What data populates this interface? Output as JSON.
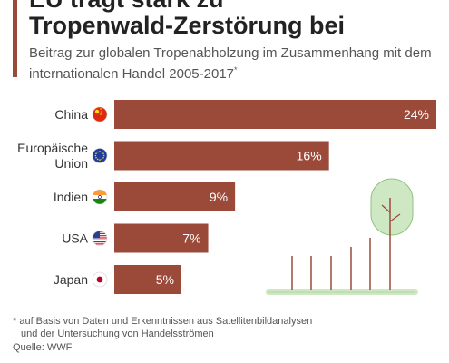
{
  "title_line1": "EU trägt stark zu",
  "title_line2": "Tropenwald-Zerstörung bei",
  "subtitle": "Beitrag zur globalen Tropenabholzung im Zusammenhang mit dem internationalen Handel 2005-2017",
  "subtitle_marker": "*",
  "footnote_line1": "* auf Basis von Daten und Erkenntnissen aus Satellitenbildanalysen",
  "footnote_line2": "und der Untersuchung von Handelsströmen",
  "source": "Quelle: WWF",
  "colors": {
    "bar": "#9b4a3a",
    "accent": "#9b4a3a",
    "tree": "#cfe8c4",
    "tree_outline": "#8fc17f",
    "ground": "#cfe8c4",
    "stick": "#9b4a3a"
  },
  "chart_data": {
    "type": "bar",
    "orientation": "horizontal",
    "categories": [
      "China",
      "Europäische Union",
      "Indien",
      "USA",
      "Japan"
    ],
    "category_lines": [
      [
        "China"
      ],
      [
        "Europäische",
        "Union"
      ],
      [
        "Indien"
      ],
      [
        "USA"
      ],
      [
        "Japan"
      ]
    ],
    "flags": [
      "china-flag-icon",
      "eu-flag-icon",
      "india-flag-icon",
      "usa-flag-icon",
      "japan-flag-icon"
    ],
    "values": [
      24,
      16,
      9,
      7,
      5
    ],
    "value_labels": [
      "24%",
      "16%",
      "9%",
      "7%",
      "5%"
    ],
    "unit": "%",
    "xlim": [
      0,
      24
    ],
    "grid": false,
    "legend": "none"
  }
}
